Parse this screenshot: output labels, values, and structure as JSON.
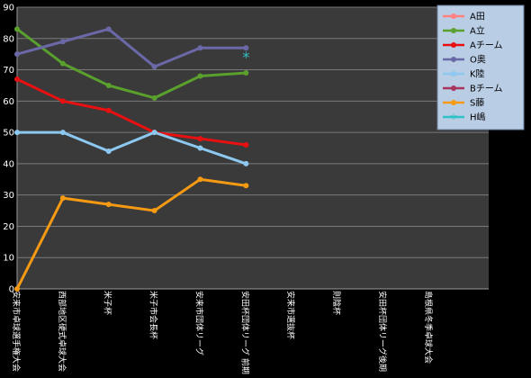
{
  "chart_data": {
    "type": "line",
    "categories": [
      "安来市卓球選手権大会",
      "西部地区硬式卓球大会",
      "米子杯",
      "米子市会長杯",
      "安来市団体リーグ",
      "安田杯団体リーグ 前期",
      "安来市選抜杯",
      "則陰杯",
      "安田杯団体リーグ後期",
      "島根県冬季卓球大会"
    ],
    "ylim": [
      0,
      90
    ],
    "yticks": [
      0,
      10,
      20,
      30,
      40,
      50,
      60,
      70,
      80,
      90
    ],
    "grid": true,
    "legend_position": "top-right",
    "series": [
      {
        "name": "A田",
        "color": "#ff8080",
        "marker": "circle",
        "values": [
          null,
          null,
          null,
          null,
          null,
          null,
          null,
          null,
          null,
          null
        ]
      },
      {
        "name": "A立",
        "color": "#5aa02c",
        "marker": "circle",
        "values": [
          83,
          72,
          65,
          61,
          68,
          69,
          null,
          null,
          null,
          null
        ]
      },
      {
        "name": "Aチーム",
        "color": "#e81010",
        "marker": "circle",
        "values": [
          67,
          60,
          57,
          50,
          48,
          46,
          null,
          null,
          null,
          null
        ]
      },
      {
        "name": "O奥",
        "color": "#6b68a8",
        "marker": "circle",
        "values": [
          75,
          79,
          83,
          71,
          77,
          77,
          null,
          null,
          null,
          null
        ]
      },
      {
        "name": "K陸",
        "color": "#8cc8f0",
        "marker": "circle",
        "values": [
          50,
          50,
          44,
          50,
          45,
          40,
          null,
          null,
          null,
          null
        ]
      },
      {
        "name": "Bチーム",
        "color": "#a8345c",
        "marker": "circle",
        "values": [
          null,
          null,
          null,
          null,
          null,
          null,
          null,
          null,
          null,
          null
        ]
      },
      {
        "name": "S藤",
        "color": "#f59a12",
        "marker": "circle",
        "values": [
          0,
          29,
          27,
          25,
          35,
          33,
          null,
          null,
          null,
          null
        ]
      },
      {
        "name": "H嶋",
        "color": "#30c0c8",
        "marker": "asterisk",
        "values": [
          null,
          null,
          null,
          null,
          null,
          75,
          null,
          null,
          null,
          null
        ]
      }
    ]
  }
}
